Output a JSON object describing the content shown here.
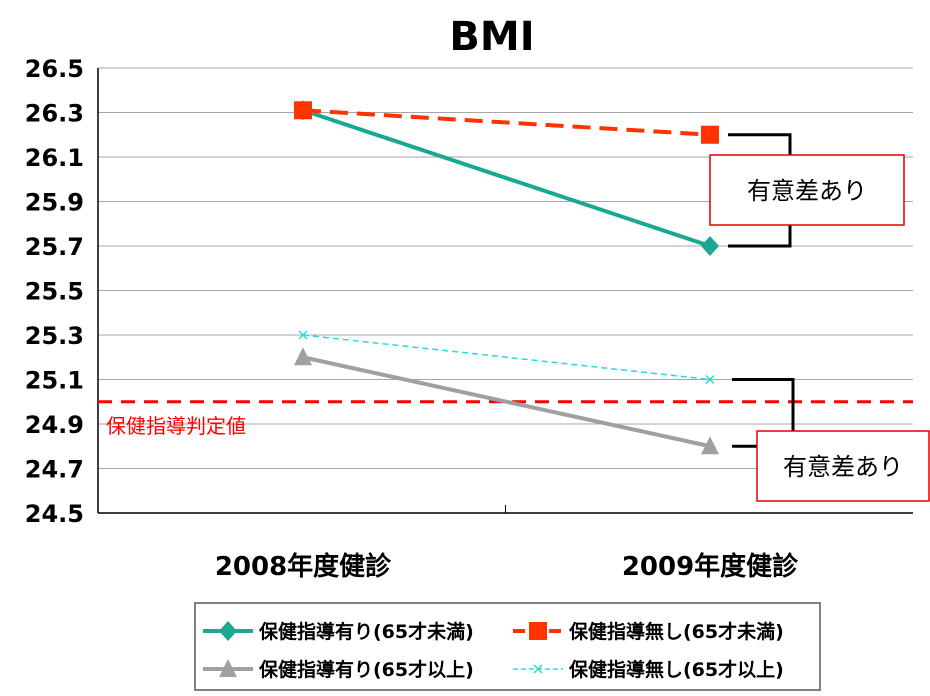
{
  "chart_data": {
    "type": "line",
    "title": "BMI",
    "categories": [
      "2008年度健診",
      "2009年度健診"
    ],
    "ylim": [
      24.5,
      26.5
    ],
    "yticks": [
      "24.5",
      "24.7",
      "24.9",
      "25.1",
      "25.3",
      "25.5",
      "25.7",
      "25.9",
      "26.1",
      "26.3",
      "26.5"
    ],
    "grid": true,
    "legend_position": "bottom",
    "series": [
      {
        "name": "保健指導有り(65才未満)",
        "values": [
          26.31,
          25.7
        ],
        "color": "#1aa892",
        "marker": "diamond",
        "dash": "solid"
      },
      {
        "name": "保健指導無し(65才未満)",
        "values": [
          26.31,
          26.2
        ],
        "color": "#ff3300",
        "marker": "square",
        "dash": "dashed"
      },
      {
        "name": "保健指導有り(65才以上)",
        "values": [
          25.2,
          24.8
        ],
        "color": "#a0a0a0",
        "marker": "triangle",
        "dash": "solid"
      },
      {
        "name": "保健指導無し(65才以上)",
        "values": [
          25.3,
          25.1
        ],
        "color": "#22dddd",
        "marker": "x",
        "dash": "dotted"
      }
    ],
    "reference_line": {
      "label": "保健指導判定値",
      "value": 25.0,
      "color": "#ff0000"
    },
    "annotations": [
      {
        "text": "有意差あり",
        "between_values": [
          26.2,
          25.7
        ]
      },
      {
        "text": "有意差あり",
        "between_values": [
          25.1,
          24.8
        ]
      }
    ]
  }
}
